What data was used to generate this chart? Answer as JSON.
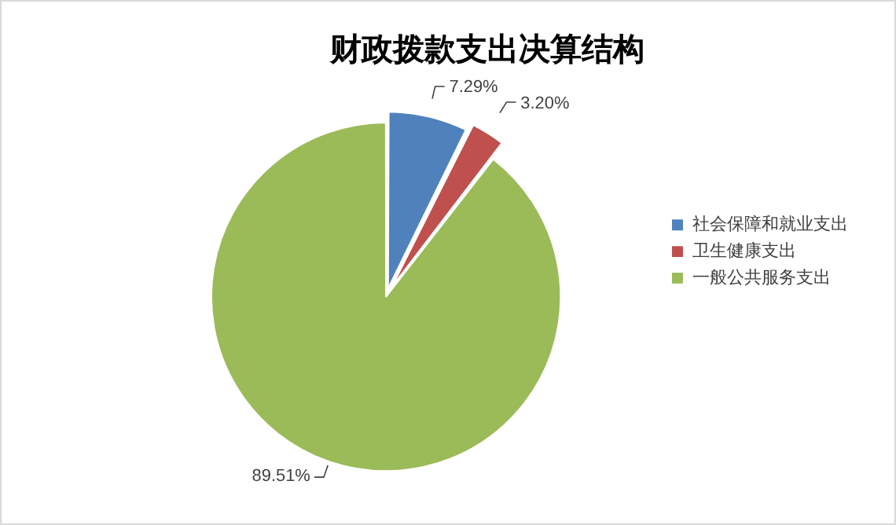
{
  "chart_data": {
    "type": "pie",
    "title": "财政拨款支出决算结构",
    "categories": [
      "社会保障和就业支出",
      "卫生健康支出",
      "一般公共服务支出"
    ],
    "values": [
      7.29,
      3.2,
      89.51
    ],
    "colors": [
      "#4f81bd",
      "#c0504d",
      "#9bbb59"
    ],
    "value_labels": [
      "7.29%",
      "3.20%",
      "89.51%"
    ],
    "legend": "right"
  }
}
